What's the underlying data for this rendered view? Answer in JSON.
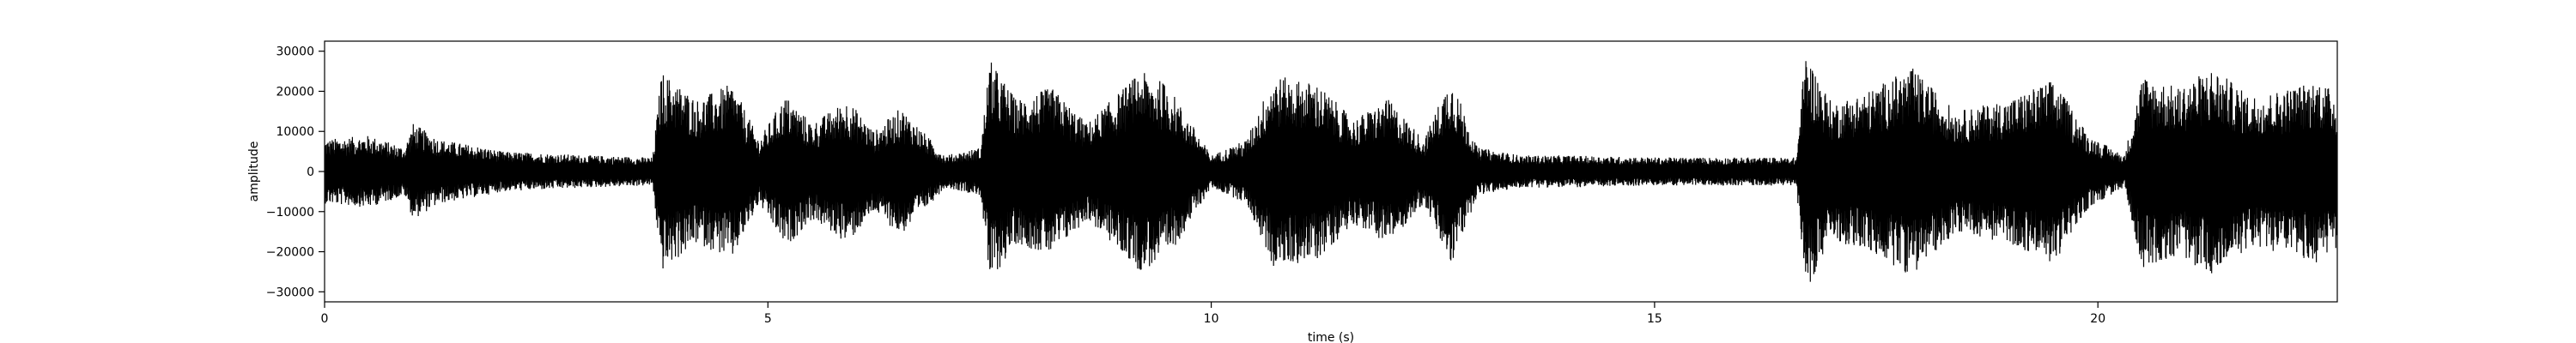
{
  "chart_data": {
    "type": "line",
    "title": "",
    "xlabel": "time (s)",
    "ylabel": "amplitude",
    "xlim": [
      0,
      22.7
    ],
    "ylim": [
      -32500,
      32500
    ],
    "grid": false,
    "xticks": [
      0,
      5,
      10,
      15,
      20
    ],
    "xtick_labels": [
      "0",
      "5",
      "10",
      "15",
      "20"
    ],
    "yticks": [
      30000,
      20000,
      10000,
      0,
      -10000,
      -20000,
      -30000
    ],
    "ytick_labels": [
      "30000",
      "20000",
      "10000",
      "0",
      "−10000",
      "−20000",
      "−30000"
    ],
    "series": [
      {
        "color": "#000000",
        "sample_rate_hz": 100,
        "envelope_time_s": [
          0,
          0.5,
          0.9,
          1.0,
          1.3,
          1.8,
          2.0,
          3.0,
          3.7,
          3.8,
          4.2,
          4.6,
          4.9,
          5.2,
          5.5,
          5.9,
          6.2,
          6.5,
          7.0,
          7.4,
          7.5,
          7.8,
          8.2,
          8.6,
          9.2,
          9.5,
          10.0,
          10.4,
          10.7,
          11.2,
          11.6,
          12.0,
          12.4,
          12.7,
          13.0,
          13.5,
          14.0,
          15.0,
          16.0,
          16.6,
          16.7,
          17.0,
          17.4,
          17.9,
          18.4,
          19.0,
          19.5,
          19.9,
          20.3,
          20.5,
          20.9,
          21.3,
          21.7,
          22.0,
          22.5,
          22.7
        ],
        "envelope_amplitude": [
          8000,
          9000,
          6000,
          12000,
          8000,
          6000,
          5000,
          4000,
          3500,
          25000,
          18000,
          22000,
          8000,
          19000,
          12000,
          18000,
          10000,
          16000,
          4000,
          6000,
          28000,
          18000,
          21000,
          12000,
          25000,
          22000,
          4000,
          8000,
          24000,
          22000,
          13000,
          18000,
          8000,
          24000,
          6000,
          4000,
          4000,
          3500,
          3500,
          3500,
          30000,
          17000,
          20000,
          26000,
          15000,
          18000,
          23000,
          9000,
          4000,
          24000,
          21000,
          26000,
          19000,
          20000,
          23000,
          19000
        ]
      }
    ]
  }
}
